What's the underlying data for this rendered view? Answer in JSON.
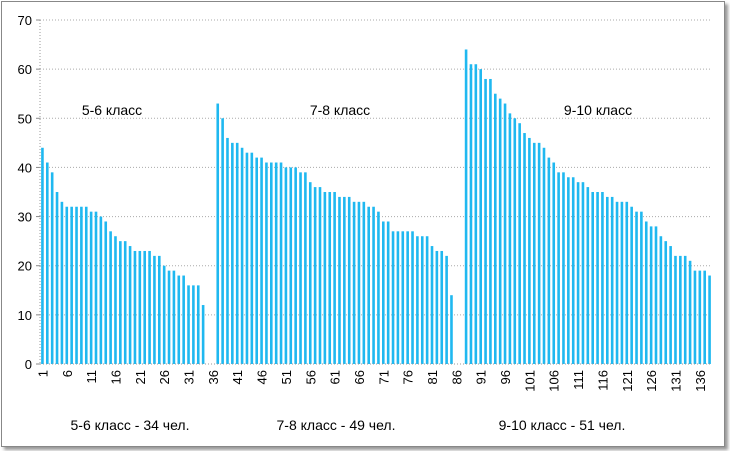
{
  "chart_data": {
    "type": "bar",
    "title": "",
    "xlabel": "",
    "ylabel": "",
    "ylim": [
      0,
      70
    ],
    "yticks": [
      0,
      10,
      20,
      30,
      40,
      50,
      60,
      70
    ],
    "grid": true,
    "bar_color": "#1fb8f0",
    "category_count": 138,
    "x_tick_labels": [
      "1",
      "6",
      "11",
      "16",
      "21",
      "26",
      "31",
      "36",
      "41",
      "46",
      "51",
      "56",
      "61",
      "66",
      "71",
      "76",
      "81",
      "86",
      "91",
      "96",
      "101",
      "106",
      "111",
      "116",
      "121",
      "126",
      "131",
      "136"
    ],
    "series": [
      {
        "name": "5-6 класс",
        "start_category": 1,
        "values": [
          44,
          41,
          39,
          35,
          33,
          32,
          32,
          32,
          32,
          32,
          31,
          31,
          30,
          29,
          27,
          26,
          25,
          25,
          24,
          23,
          23,
          23,
          23,
          22,
          22,
          20,
          19,
          19,
          18,
          18,
          16,
          16,
          16,
          12
        ]
      },
      {
        "name": "7-8 класс",
        "start_category": 37,
        "values": [
          53,
          50,
          46,
          45,
          45,
          44,
          43,
          43,
          42,
          42,
          41,
          41,
          41,
          41,
          40,
          40,
          40,
          39,
          39,
          37,
          36,
          36,
          35,
          35,
          35,
          34,
          34,
          34,
          33,
          33,
          33,
          32,
          32,
          31,
          29,
          29,
          27,
          27,
          27,
          27,
          27,
          26,
          26,
          26,
          24,
          23,
          23,
          22,
          14
        ]
      },
      {
        "name": "9-10 класс",
        "start_category": 88,
        "values": [
          64,
          61,
          61,
          60,
          58,
          58,
          55,
          54,
          53,
          51,
          50,
          49,
          47,
          46,
          45,
          45,
          44,
          42,
          41,
          39,
          39,
          38,
          38,
          37,
          37,
          36,
          35,
          35,
          35,
          34,
          34,
          33,
          33,
          33,
          32,
          31,
          31,
          29,
          28,
          28,
          26,
          25,
          24,
          22,
          22,
          22,
          21,
          19,
          19,
          19,
          18
        ]
      }
    ],
    "annotations": [
      "5-6 класс",
      "7-8 класс",
      "9-10 класс"
    ],
    "group_captions": [
      "5-6 класс - 34 чел.",
      "7-8 класс - 49 чел.",
      "9-10 класс - 51 чел."
    ]
  }
}
